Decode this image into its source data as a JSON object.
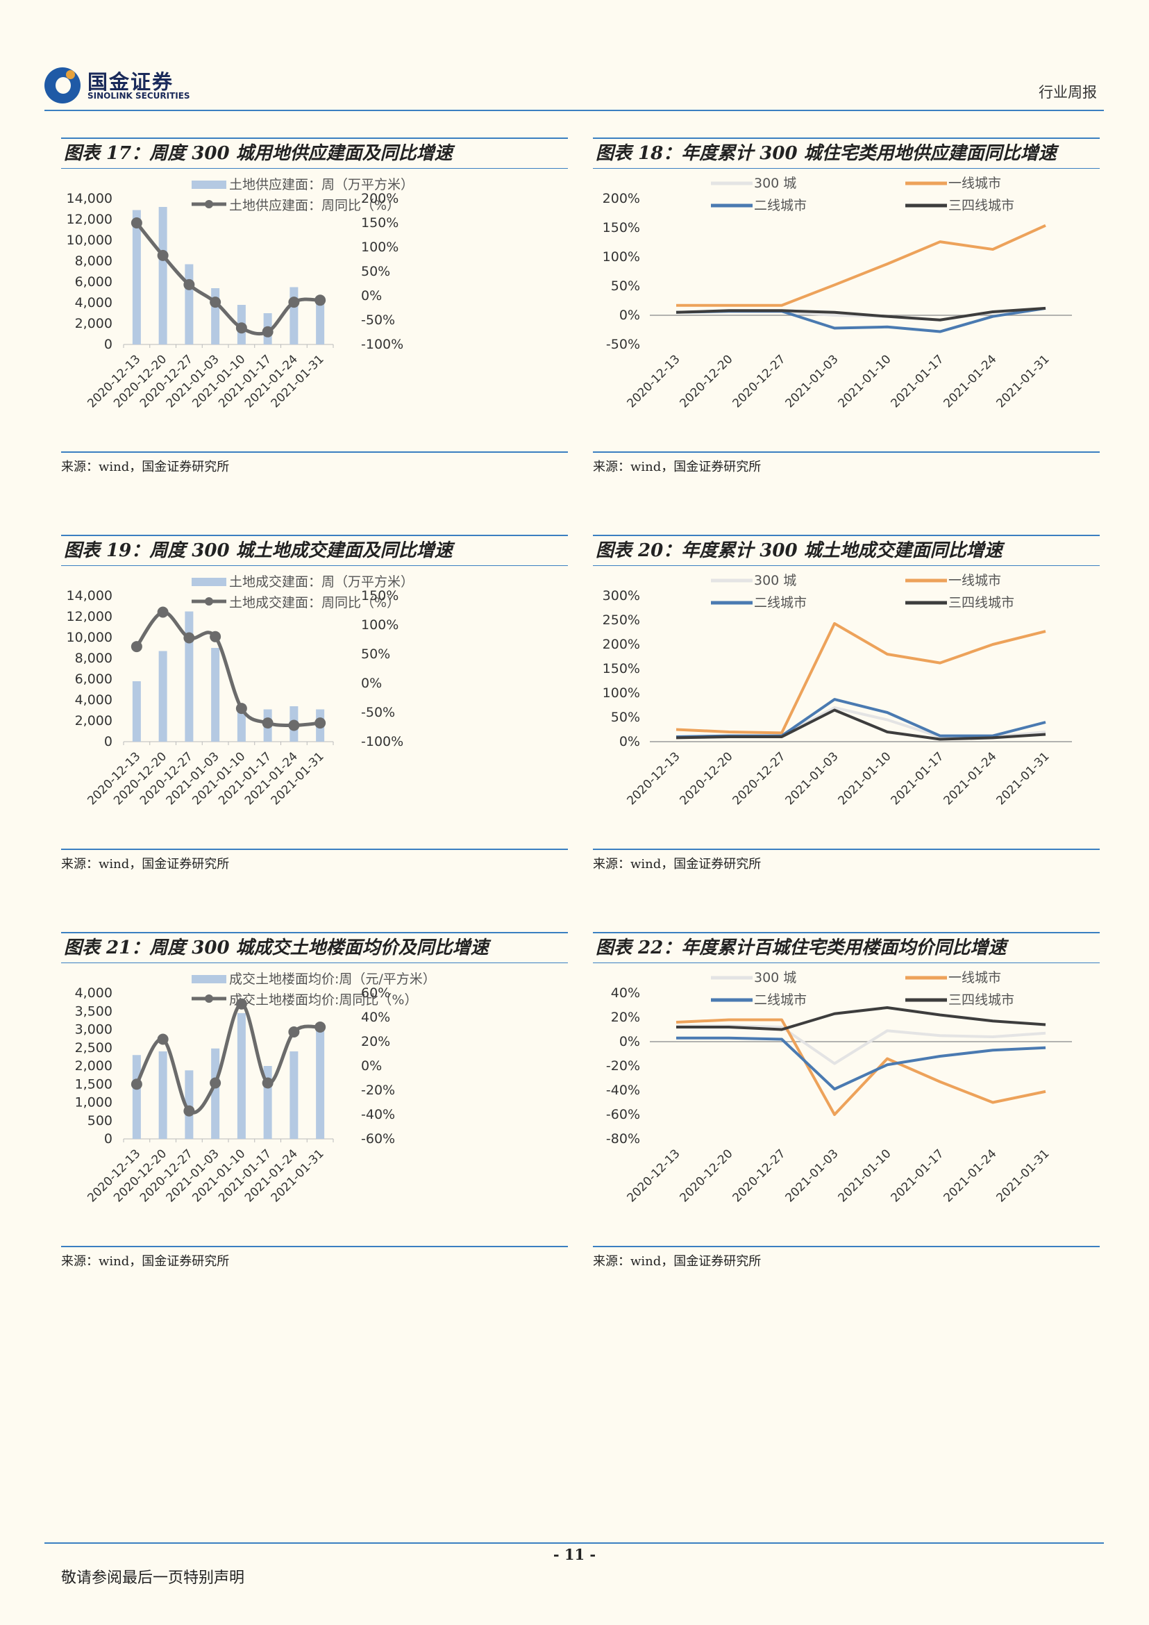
{
  "header": {
    "logo_cn": "国金证券",
    "logo_en": "SINOLINK SECURITIES",
    "report_type": "行业周报"
  },
  "footer": {
    "page_number": "- 11 -",
    "disclaimer": "敬请参阅最后一页特别声明"
  },
  "colors": {
    "rule": "#3a7fc1",
    "bar": "#b4c9e2",
    "line_gray": "#6b6b6b",
    "s300": "#e4e4e4",
    "tier1": "#eda25a",
    "tier2": "#4a7ab1",
    "tier34": "#3d3d3d"
  },
  "panels": [
    {
      "title": "图表 17：周度 300 城用地供应建面及同比增速",
      "source": "来源：wind，国金证券研究所"
    },
    {
      "title": "图表 18：年度累计 300 城住宅类用地供应建面同比增速",
      "source": "来源：wind，国金证券研究所"
    },
    {
      "title": "图表 19：周度 300 城土地成交建面及同比增速",
      "source": "来源：wind，国金证券研究所"
    },
    {
      "title": "图表 20：年度累计 300 城土地成交建面同比增速",
      "source": "来源：wind，国金证券研究所"
    },
    {
      "title": "图表 21：周度 300 城成交土地楼面均价及同比增速",
      "source": "来源：wind，国金证券研究所"
    },
    {
      "title": "图表 22：年度累计百城住宅类用楼面均价同比增速",
      "source": "来源：wind，国金证券研究所"
    }
  ],
  "chart_data": [
    {
      "type": "bar",
      "categories": [
        "2020-12-13",
        "2020-12-20",
        "2020-12-27",
        "2021-01-03",
        "2021-01-10",
        "2021-01-17",
        "2021-01-24",
        "2021-01-31"
      ],
      "series": [
        {
          "name": "土地供应建面：周（万平方米）",
          "kind": "bar",
          "axis": "left",
          "values": [
            12900,
            13200,
            7700,
            5400,
            3800,
            3000,
            5500,
            4000
          ]
        },
        {
          "name": "土地供应建面：周同比（%）",
          "kind": "line",
          "axis": "right",
          "values": [
            150,
            83,
            23,
            -13,
            -66,
            -74,
            -13,
            -9
          ]
        }
      ],
      "ylim_left": [
        0,
        14000
      ],
      "yticks_left": [
        "14,000",
        "12,000",
        "10,000",
        "8,000",
        "6,000",
        "4,000",
        "2,000",
        "0"
      ],
      "ylim_right": [
        -100,
        200
      ],
      "yticks_right": [
        "200%",
        "150%",
        "100%",
        "50%",
        "0%",
        "-50%",
        "-100%"
      ],
      "legend": "top"
    },
    {
      "type": "line",
      "categories": [
        "2020-12-13",
        "2020-12-20",
        "2020-12-27",
        "2021-01-03",
        "2021-01-10",
        "2021-01-17",
        "2021-01-24",
        "2021-01-31"
      ],
      "series": [
        {
          "name": "300 城",
          "values": [
            5,
            6,
            6,
            0,
            -2,
            -8,
            5,
            12
          ]
        },
        {
          "name": "一线城市",
          "values": [
            17,
            17,
            17,
            52,
            88,
            126,
            113,
            154
          ]
        },
        {
          "name": "二线城市",
          "values": [
            5,
            7,
            7,
            -22,
            -20,
            -28,
            -2,
            12
          ]
        },
        {
          "name": "三四线城市",
          "values": [
            5,
            8,
            8,
            5,
            -2,
            -8,
            6,
            12
          ]
        }
      ],
      "ylim": [
        -50,
        200
      ],
      "yticks": [
        "200%",
        "150%",
        "100%",
        "50%",
        "0%",
        "-50%"
      ],
      "legend": "top"
    },
    {
      "type": "bar",
      "categories": [
        "2020-12-13",
        "2020-12-20",
        "2020-12-27",
        "2021-01-03",
        "2021-01-10",
        "2021-01-17",
        "2021-01-24",
        "2021-01-31"
      ],
      "series": [
        {
          "name": "土地成交建面：周（万平方米）",
          "kind": "bar",
          "axis": "left",
          "values": [
            5800,
            8700,
            12500,
            9000,
            3600,
            3100,
            3400,
            3100
          ]
        },
        {
          "name": "土地成交建面：周同比（%）",
          "kind": "line",
          "axis": "right",
          "values": [
            63,
            122,
            78,
            80,
            -43,
            -68,
            -72,
            -68
          ]
        }
      ],
      "ylim_left": [
        0,
        14000
      ],
      "yticks_left": [
        "14,000",
        "12,000",
        "10,000",
        "8,000",
        "6,000",
        "4,000",
        "2,000",
        "0"
      ],
      "ylim_right": [
        -100,
        150
      ],
      "yticks_right": [
        "150%",
        "100%",
        "50%",
        "0%",
        "-50%",
        "-100%"
      ],
      "legend": "top"
    },
    {
      "type": "line",
      "categories": [
        "2020-12-13",
        "2020-12-20",
        "2020-12-27",
        "2021-01-03",
        "2021-01-10",
        "2021-01-17",
        "2021-01-24",
        "2021-01-31"
      ],
      "series": [
        {
          "name": "300 城",
          "values": [
            10,
            12,
            12,
            70,
            45,
            10,
            10,
            20
          ]
        },
        {
          "name": "一线城市",
          "values": [
            25,
            20,
            18,
            243,
            180,
            162,
            200,
            227
          ]
        },
        {
          "name": "二线城市",
          "values": [
            10,
            12,
            12,
            87,
            60,
            12,
            12,
            40
          ]
        },
        {
          "name": "三四线城市",
          "values": [
            8,
            10,
            10,
            65,
            20,
            5,
            8,
            15
          ]
        }
      ],
      "ylim": [
        0,
        300
      ],
      "yticks": [
        "300%",
        "250%",
        "200%",
        "150%",
        "100%",
        "50%",
        "0%"
      ],
      "legend": "top"
    },
    {
      "type": "bar",
      "categories": [
        "2020-12-13",
        "2020-12-20",
        "2020-12-27",
        "2021-01-03",
        "2021-01-10",
        "2021-01-17",
        "2021-01-24",
        "2021-01-31"
      ],
      "series": [
        {
          "name": "成交土地楼面均价:周（元/平方米）",
          "kind": "bar",
          "axis": "left",
          "values": [
            2300,
            2400,
            1880,
            2480,
            3450,
            2000,
            2400,
            3150
          ]
        },
        {
          "name": "成交土地楼面均价:周同比（%）",
          "kind": "line",
          "axis": "right",
          "values": [
            -15,
            22,
            -37,
            -14,
            51,
            -14,
            28,
            32
          ]
        }
      ],
      "ylim_left": [
        0,
        4000
      ],
      "yticks_left": [
        "4,000",
        "3,500",
        "3,000",
        "2,500",
        "2,000",
        "1,500",
        "1,000",
        "500",
        "0"
      ],
      "ylim_right": [
        -60,
        60
      ],
      "yticks_right": [
        "60%",
        "40%",
        "20%",
        "0%",
        "-20%",
        "-40%",
        "-60%"
      ],
      "legend": "top"
    },
    {
      "type": "line",
      "categories": [
        "2020-12-13",
        "2020-12-20",
        "2020-12-27",
        "2021-01-03",
        "2021-01-10",
        "2021-01-17",
        "2021-01-24",
        "2021-01-31"
      ],
      "series": [
        {
          "name": "300 城",
          "values": [
            13,
            13,
            12,
            -18,
            9,
            5,
            4,
            7
          ]
        },
        {
          "name": "一线城市",
          "values": [
            16,
            18,
            18,
            -60,
            -14,
            -33,
            -50,
            -41
          ]
        },
        {
          "name": "二线城市",
          "values": [
            3,
            3,
            2,
            -39,
            -19,
            -12,
            -7,
            -5
          ]
        },
        {
          "name": "三四线城市",
          "values": [
            12,
            12,
            10,
            23,
            28,
            22,
            17,
            14
          ]
        }
      ],
      "ylim": [
        -80,
        40
      ],
      "yticks": [
        "40%",
        "20%",
        "0%",
        "-20%",
        "-40%",
        "-60%",
        "-80%"
      ],
      "legend": "top"
    }
  ]
}
